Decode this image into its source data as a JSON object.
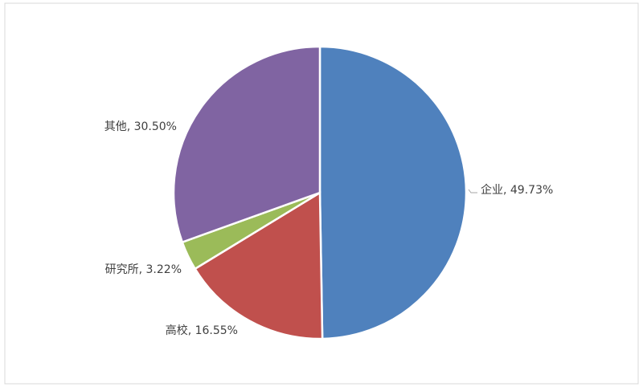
{
  "chart_data": {
    "type": "pie",
    "values": [
      49.73,
      16.55,
      3.22,
      30.5
    ],
    "value_labels": [
      "企业, 49.73%",
      "高校, 16.55%",
      "研究所, 3.22%",
      "其他, 30.50%"
    ],
    "colors": [
      "#4f81bd",
      "#c0504d",
      "#9bbb59",
      "#8064a2"
    ]
  }
}
